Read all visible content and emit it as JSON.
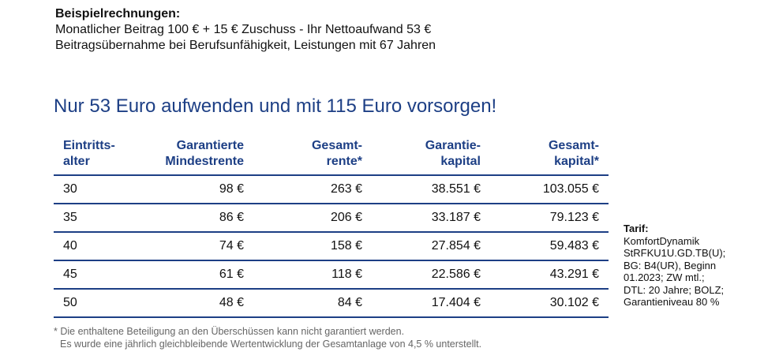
{
  "intro": {
    "title": "Beispielrechnungen:",
    "line1": "Monatlicher Beitrag 100 € + 15 € Zuschuss - Ihr Nettoaufwand 53 €",
    "line2": "Beitragsübernahme bei Berufsunfähigkeit, Leistungen mit 67 Jahren"
  },
  "headline": "Nur 53 Euro aufwenden und mit 115 Euro vorsorgen!",
  "table": {
    "headers": [
      [
        "Eintritts-",
        "alter"
      ],
      [
        "Garantierte",
        "Mindestrente"
      ],
      [
        "Gesamt-",
        "rente*"
      ],
      [
        "Garantie-",
        "kapital"
      ],
      [
        "Gesamt-",
        "kapital*"
      ]
    ],
    "rows": [
      [
        "30",
        "98 €",
        "263 €",
        "38.551 €",
        "103.055 €"
      ],
      [
        "35",
        "86 €",
        "206 €",
        "33.187 €",
        "79.123 €"
      ],
      [
        "40",
        "74 €",
        "158 €",
        "27.854 €",
        "59.483 €"
      ],
      [
        "45",
        "61 €",
        "118 €",
        "22.586 €",
        "43.291 €"
      ],
      [
        "50",
        "48 €",
        "84 €",
        "17.404 €",
        "30.102 €"
      ]
    ]
  },
  "tarif": {
    "label": "Tarif:",
    "lines": [
      "KomfortDynamik",
      "StRFKU1U.GD.TB(U);",
      "BG: B4(UR), Beginn",
      "01.2023; ZW mtl.;",
      "DTL: 20 Jahre; BOLZ;",
      "Garantieniveau 80 %"
    ]
  },
  "footnote": {
    "line1": "* Die enthaltene Beteiligung an den Überschüssen kann nicht garantiert werden.",
    "line2": "Es wurde eine jährlich gleichbleibende Wertentwicklung der Gesamtanlage von 4,5 % unterstellt."
  }
}
